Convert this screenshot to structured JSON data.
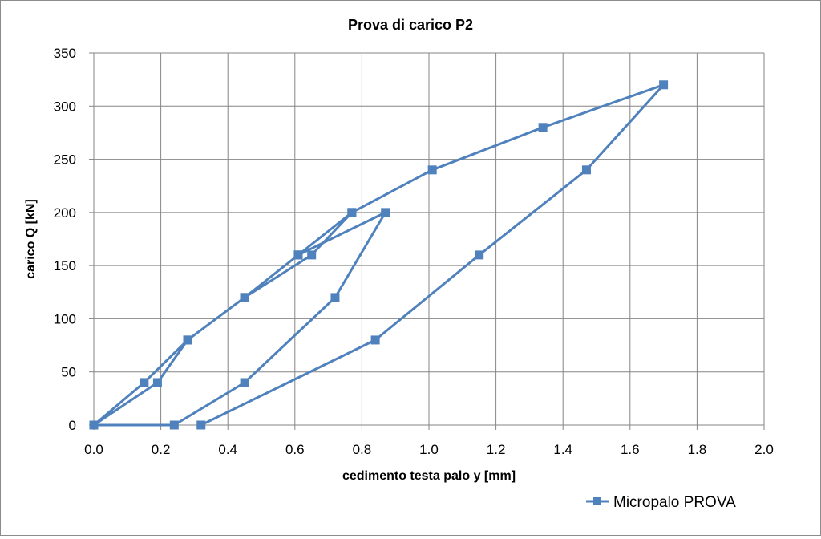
{
  "chart_data": {
    "type": "line",
    "title": "Prova di carico P2",
    "xlabel": "cedimento testa palo y [mm]",
    "ylabel": "carico Q [kN]",
    "xlim": [
      0,
      2.0
    ],
    "ylim": [
      0,
      350
    ],
    "x_ticks": [
      "0.0",
      "0.2",
      "0.4",
      "0.6",
      "0.8",
      "1.0",
      "1.2",
      "1.4",
      "1.6",
      "1.8",
      "2.0"
    ],
    "y_ticks": [
      "0",
      "50",
      "100",
      "150",
      "200",
      "250",
      "300",
      "350"
    ],
    "grid": true,
    "legend_position": "bottom-right",
    "series": [
      {
        "name": "Micropalo PROVA",
        "color": "#4f81bd",
        "marker": "square",
        "points": [
          {
            "x": 0.0,
            "y": 0
          },
          {
            "x": 0.15,
            "y": 40
          },
          {
            "x": 0.28,
            "y": 80
          },
          {
            "x": 0.19,
            "y": 40
          },
          {
            "x": 0.0,
            "y": 0
          },
          {
            "x": 0.15,
            "y": 40
          },
          {
            "x": 0.28,
            "y": 80
          },
          {
            "x": 0.45,
            "y": 120
          },
          {
            "x": 0.61,
            "y": 160
          },
          {
            "x": 0.77,
            "y": 200
          },
          {
            "x": 0.65,
            "y": 160
          },
          {
            "x": 0.45,
            "y": 120
          },
          {
            "x": 0.61,
            "y": 160
          },
          {
            "x": 0.87,
            "y": 200
          },
          {
            "x": 0.72,
            "y": 120
          },
          {
            "x": 0.45,
            "y": 40
          },
          {
            "x": 0.24,
            "y": 0
          },
          {
            "x": 0.0,
            "y": 0
          },
          {
            "x": 0.15,
            "y": 40
          },
          {
            "x": 0.28,
            "y": 80
          },
          {
            "x": 0.45,
            "y": 120
          },
          {
            "x": 0.61,
            "y": 160
          },
          {
            "x": 0.77,
            "y": 200
          },
          {
            "x": 1.01,
            "y": 240
          },
          {
            "x": 1.34,
            "y": 280
          },
          {
            "x": 1.7,
            "y": 320
          },
          {
            "x": 1.47,
            "y": 240
          },
          {
            "x": 1.15,
            "y": 160
          },
          {
            "x": 0.84,
            "y": 80
          },
          {
            "x": 0.32,
            "y": 0
          }
        ]
      }
    ]
  }
}
